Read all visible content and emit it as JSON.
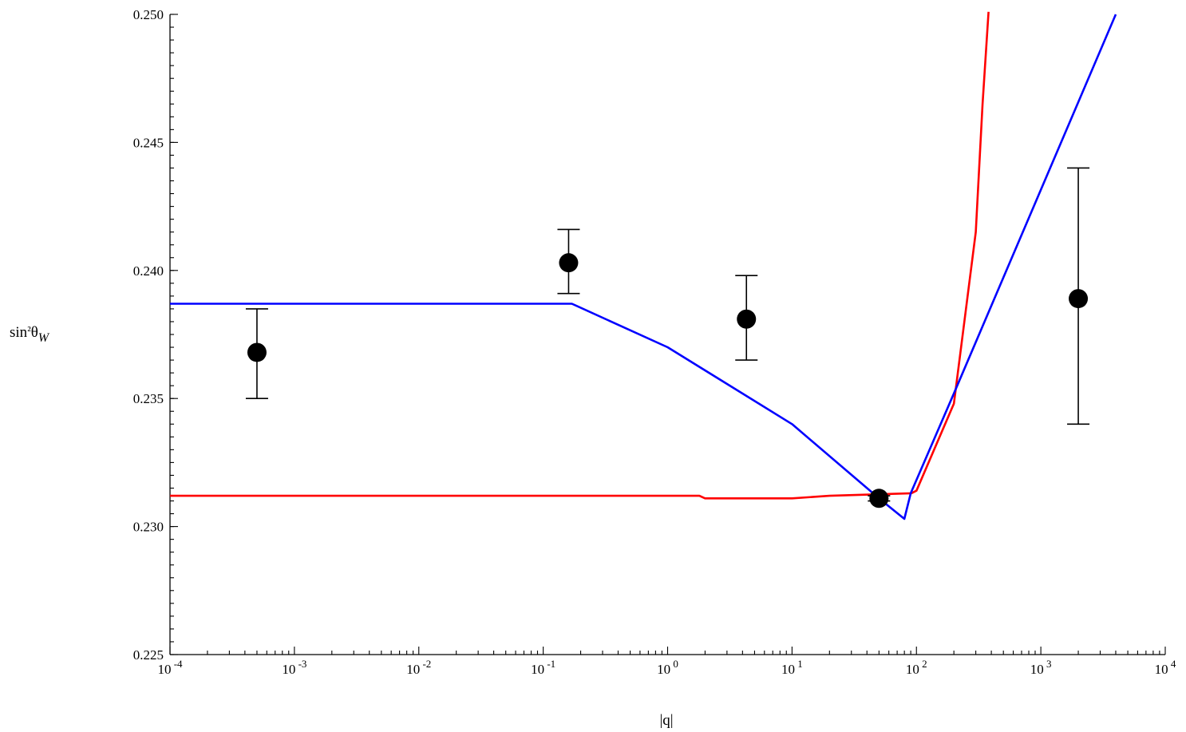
{
  "chart_data": {
    "type": "line",
    "title": "",
    "xlabel": "|q|",
    "ylabel": "sin²θ_W",
    "xscale": "log",
    "xlim": [
      0.0001,
      10000
    ],
    "ylim": [
      0.225,
      0.25
    ],
    "grid": false,
    "legend": "none",
    "x_tick_labels": [
      {
        "base": "10",
        "exp": "-4",
        "value": 0.0001
      },
      {
        "base": "10",
        "exp": "-3",
        "value": 0.001
      },
      {
        "base": "10",
        "exp": "-2",
        "value": 0.01
      },
      {
        "base": "10",
        "exp": "-1",
        "value": 0.1
      },
      {
        "base": "10",
        "exp": "0",
        "value": 1
      },
      {
        "base": "10",
        "exp": "1",
        "value": 10
      },
      {
        "base": "10",
        "exp": "2",
        "value": 100
      },
      {
        "base": "10",
        "exp": "3",
        "value": 1000
      },
      {
        "base": "10",
        "exp": "4",
        "value": 10000
      }
    ],
    "y_tick_labels": [
      {
        "text": "0.225",
        "value": 0.225
      },
      {
        "text": "0.230",
        "value": 0.23
      },
      {
        "text": "0.235",
        "value": 0.235
      },
      {
        "text": "0.240",
        "value": 0.24
      },
      {
        "text": "0.245",
        "value": 0.245
      },
      {
        "text": "0.250",
        "value": 0.25
      }
    ],
    "series": [
      {
        "color": "#ff0000",
        "points": [
          [
            0.0001,
            0.2312
          ],
          [
            1.8,
            0.2312
          ],
          [
            2.0,
            0.2311
          ],
          [
            10,
            0.2311
          ],
          [
            20,
            0.2312
          ],
          [
            91.2,
            0.2313
          ],
          [
            100,
            0.2314
          ],
          [
            200,
            0.2348
          ],
          [
            300,
            0.2415
          ],
          [
            340,
            0.2465
          ],
          [
            380,
            0.2501
          ]
        ]
      },
      {
        "color": "#0000ff",
        "points": [
          [
            0.0001,
            0.2387
          ],
          [
            0.17,
            0.2387
          ],
          [
            1.0,
            0.237
          ],
          [
            10,
            0.234
          ],
          [
            50,
            0.2311
          ],
          [
            80,
            0.2303
          ],
          [
            90,
            0.2313
          ],
          [
            200,
            0.2352
          ],
          [
            4000,
            0.25
          ]
        ]
      }
    ],
    "data_points": [
      {
        "x": 0.0005,
        "y": 0.2368,
        "yerr_low": 0.235,
        "yerr_high": 0.2385
      },
      {
        "x": 0.16,
        "y": 0.2403,
        "yerr_low": 0.2391,
        "yerr_high": 0.2416
      },
      {
        "x": 4.3,
        "y": 0.2381,
        "yerr_low": 0.2365,
        "yerr_high": 0.2398
      },
      {
        "x": 50,
        "y": 0.2311,
        "yerr_low": 0.231,
        "yerr_high": 0.2312
      },
      {
        "x": 2000,
        "y": 0.2389,
        "yerr_low": 0.234,
        "yerr_high": 0.244
      }
    ],
    "marker_color": "#000000"
  }
}
